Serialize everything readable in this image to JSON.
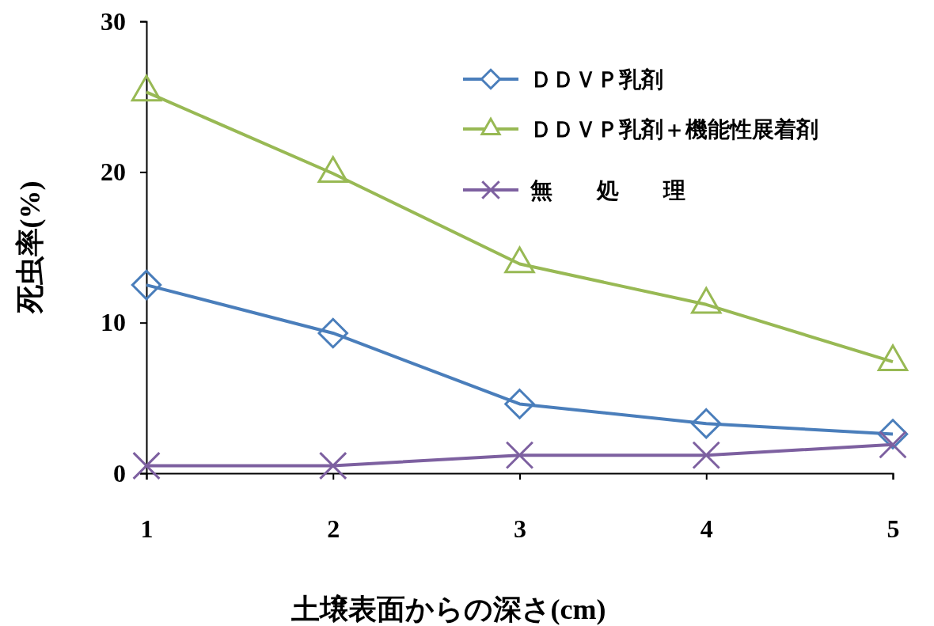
{
  "chart_data": {
    "type": "line",
    "xlabel": "土壌表面からの深さ(cm)",
    "ylabel": "死虫率(%)",
    "x": [
      1,
      2,
      3,
      4,
      5
    ],
    "xlim": [
      1,
      5
    ],
    "xticks": [
      1,
      2,
      3,
      4,
      5
    ],
    "ylim": [
      0,
      30
    ],
    "yticks": [
      0,
      10,
      20,
      30
    ],
    "grid": false,
    "legend": "top right",
    "series": [
      {
        "name": "ＤＤＶＰ乳剤",
        "color": "#4a7ebb",
        "marker": "diamond",
        "values": [
          12.5,
          9.3,
          4.6,
          3.3,
          2.6
        ]
      },
      {
        "name": "ＤＤＶＰ乳剤＋機能性展着剤",
        "color": "#98b954",
        "marker": "triangle",
        "values": [
          25.3,
          19.9,
          13.9,
          11.2,
          7.4
        ]
      },
      {
        "name": "無　　処　　理",
        "color": "#7d60a0",
        "marker": "cross",
        "values": [
          0.5,
          0.5,
          1.2,
          1.2,
          1.9
        ]
      }
    ]
  }
}
